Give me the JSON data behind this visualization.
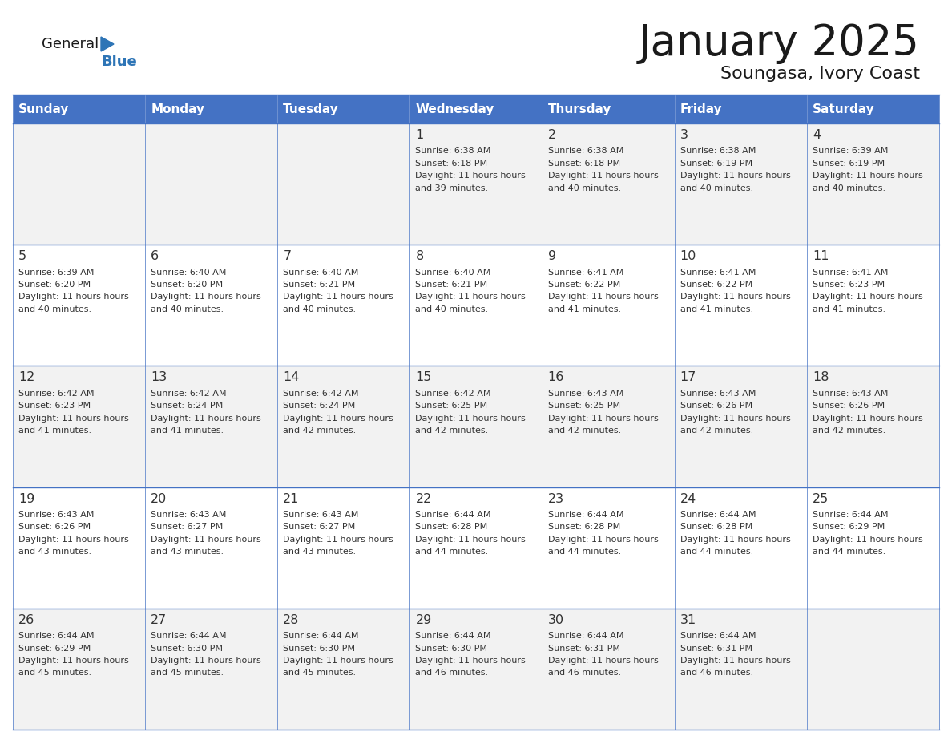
{
  "title": "January 2025",
  "subtitle": "Soungasa, Ivory Coast",
  "header_bg": "#4472C4",
  "header_text_color": "#FFFFFF",
  "row_bg_light": "#F2F2F2",
  "row_bg_white": "#FFFFFF",
  "cell_border_color": "#4472C4",
  "logo_black": "#1a1a1a",
  "logo_blue": "#2E75B6",
  "day_headers": [
    "Sunday",
    "Monday",
    "Tuesday",
    "Wednesday",
    "Thursday",
    "Friday",
    "Saturday"
  ],
  "calendar_data": [
    [
      {
        "day": "",
        "sunrise": "",
        "sunset": "",
        "daylight": ""
      },
      {
        "day": "",
        "sunrise": "",
        "sunset": "",
        "daylight": ""
      },
      {
        "day": "",
        "sunrise": "",
        "sunset": "",
        "daylight": ""
      },
      {
        "day": "1",
        "sunrise": "6:38 AM",
        "sunset": "6:18 PM",
        "daylight": "11 hours and 39 minutes."
      },
      {
        "day": "2",
        "sunrise": "6:38 AM",
        "sunset": "6:18 PM",
        "daylight": "11 hours and 40 minutes."
      },
      {
        "day": "3",
        "sunrise": "6:38 AM",
        "sunset": "6:19 PM",
        "daylight": "11 hours and 40 minutes."
      },
      {
        "day": "4",
        "sunrise": "6:39 AM",
        "sunset": "6:19 PM",
        "daylight": "11 hours and 40 minutes."
      }
    ],
    [
      {
        "day": "5",
        "sunrise": "6:39 AM",
        "sunset": "6:20 PM",
        "daylight": "11 hours and 40 minutes."
      },
      {
        "day": "6",
        "sunrise": "6:40 AM",
        "sunset": "6:20 PM",
        "daylight": "11 hours and 40 minutes."
      },
      {
        "day": "7",
        "sunrise": "6:40 AM",
        "sunset": "6:21 PM",
        "daylight": "11 hours and 40 minutes."
      },
      {
        "day": "8",
        "sunrise": "6:40 AM",
        "sunset": "6:21 PM",
        "daylight": "11 hours and 40 minutes."
      },
      {
        "day": "9",
        "sunrise": "6:41 AM",
        "sunset": "6:22 PM",
        "daylight": "11 hours and 41 minutes."
      },
      {
        "day": "10",
        "sunrise": "6:41 AM",
        "sunset": "6:22 PM",
        "daylight": "11 hours and 41 minutes."
      },
      {
        "day": "11",
        "sunrise": "6:41 AM",
        "sunset": "6:23 PM",
        "daylight": "11 hours and 41 minutes."
      }
    ],
    [
      {
        "day": "12",
        "sunrise": "6:42 AM",
        "sunset": "6:23 PM",
        "daylight": "11 hours and 41 minutes."
      },
      {
        "day": "13",
        "sunrise": "6:42 AM",
        "sunset": "6:24 PM",
        "daylight": "11 hours and 41 minutes."
      },
      {
        "day": "14",
        "sunrise": "6:42 AM",
        "sunset": "6:24 PM",
        "daylight": "11 hours and 42 minutes."
      },
      {
        "day": "15",
        "sunrise": "6:42 AM",
        "sunset": "6:25 PM",
        "daylight": "11 hours and 42 minutes."
      },
      {
        "day": "16",
        "sunrise": "6:43 AM",
        "sunset": "6:25 PM",
        "daylight": "11 hours and 42 minutes."
      },
      {
        "day": "17",
        "sunrise": "6:43 AM",
        "sunset": "6:26 PM",
        "daylight": "11 hours and 42 minutes."
      },
      {
        "day": "18",
        "sunrise": "6:43 AM",
        "sunset": "6:26 PM",
        "daylight": "11 hours and 42 minutes."
      }
    ],
    [
      {
        "day": "19",
        "sunrise": "6:43 AM",
        "sunset": "6:26 PM",
        "daylight": "11 hours and 43 minutes."
      },
      {
        "day": "20",
        "sunrise": "6:43 AM",
        "sunset": "6:27 PM",
        "daylight": "11 hours and 43 minutes."
      },
      {
        "day": "21",
        "sunrise": "6:43 AM",
        "sunset": "6:27 PM",
        "daylight": "11 hours and 43 minutes."
      },
      {
        "day": "22",
        "sunrise": "6:44 AM",
        "sunset": "6:28 PM",
        "daylight": "11 hours and 44 minutes."
      },
      {
        "day": "23",
        "sunrise": "6:44 AM",
        "sunset": "6:28 PM",
        "daylight": "11 hours and 44 minutes."
      },
      {
        "day": "24",
        "sunrise": "6:44 AM",
        "sunset": "6:28 PM",
        "daylight": "11 hours and 44 minutes."
      },
      {
        "day": "25",
        "sunrise": "6:44 AM",
        "sunset": "6:29 PM",
        "daylight": "11 hours and 44 minutes."
      }
    ],
    [
      {
        "day": "26",
        "sunrise": "6:44 AM",
        "sunset": "6:29 PM",
        "daylight": "11 hours and 45 minutes."
      },
      {
        "day": "27",
        "sunrise": "6:44 AM",
        "sunset": "6:30 PM",
        "daylight": "11 hours and 45 minutes."
      },
      {
        "day": "28",
        "sunrise": "6:44 AM",
        "sunset": "6:30 PM",
        "daylight": "11 hours and 45 minutes."
      },
      {
        "day": "29",
        "sunrise": "6:44 AM",
        "sunset": "6:30 PM",
        "daylight": "11 hours and 46 minutes."
      },
      {
        "day": "30",
        "sunrise": "6:44 AM",
        "sunset": "6:31 PM",
        "daylight": "11 hours and 46 minutes."
      },
      {
        "day": "31",
        "sunrise": "6:44 AM",
        "sunset": "6:31 PM",
        "daylight": "11 hours and 46 minutes."
      },
      {
        "day": "",
        "sunrise": "",
        "sunset": "",
        "daylight": ""
      }
    ]
  ]
}
